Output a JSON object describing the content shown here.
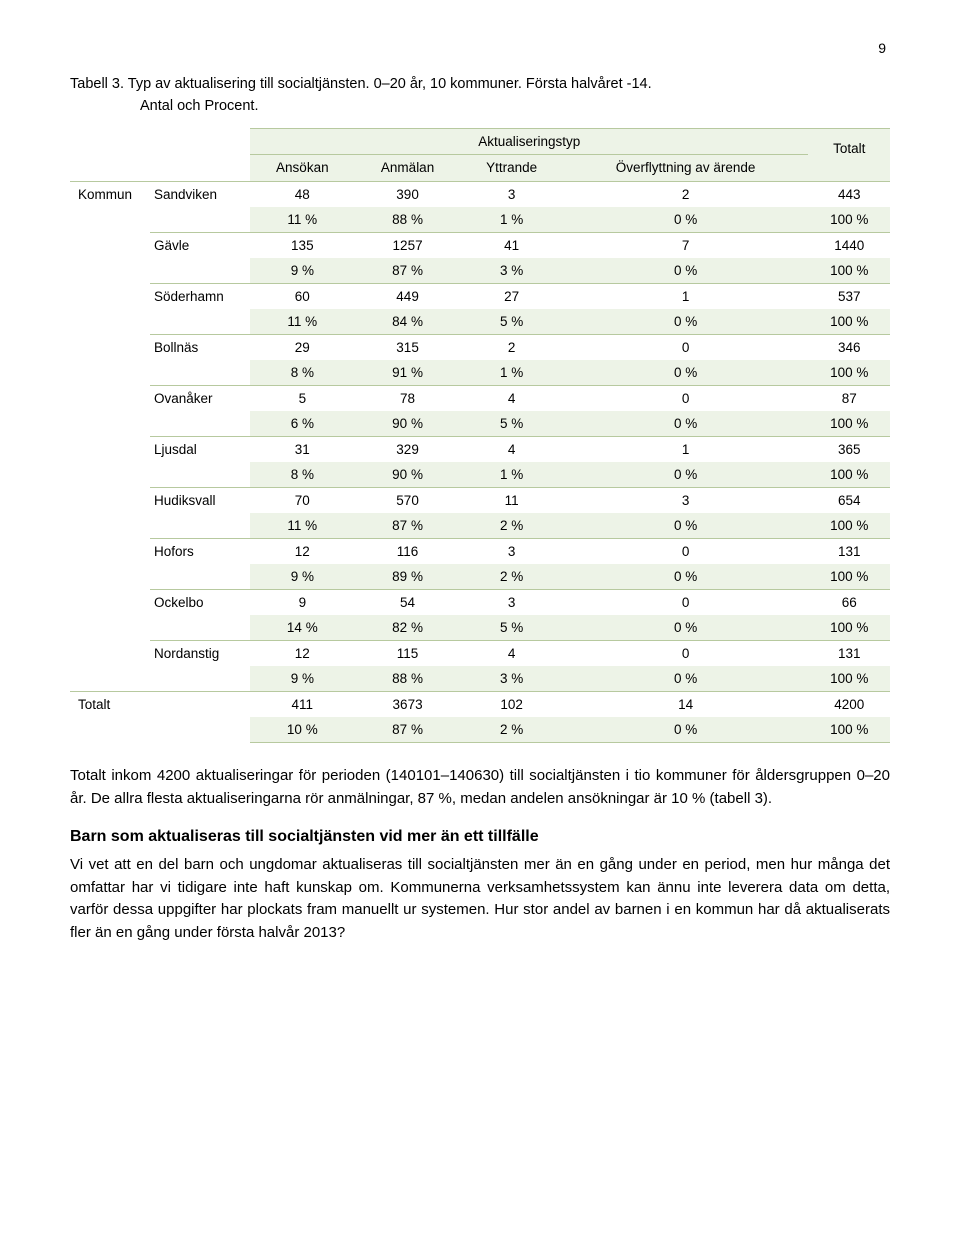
{
  "page_number": "9",
  "table": {
    "title_line1": "Tabell 3. Typ av aktualisering till socialtjänsten. 0–20 år, 10 kommuner. Första halvåret -14.",
    "title_line2_indent": "Antal och Procent.",
    "group_header": "Aktualiseringstyp",
    "total_header": "Totalt",
    "col_headers": [
      "Ansökan",
      "Anmälan",
      "Yttrande",
      "Överflyttning av ärende"
    ],
    "outer_label": "Kommun",
    "total_label": "Totalt",
    "colors": {
      "band_bg": "#edf3e7",
      "border": "#b7c99f"
    },
    "rows": [
      {
        "label": "Sandviken",
        "vals": [
          "48",
          "390",
          "3",
          "2",
          "443"
        ],
        "pct": [
          "11 %",
          "88 %",
          "1 %",
          "0 %",
          "100 %"
        ]
      },
      {
        "label": "Gävle",
        "vals": [
          "135",
          "1257",
          "41",
          "7",
          "1440"
        ],
        "pct": [
          "9 %",
          "87 %",
          "3 %",
          "0 %",
          "100 %"
        ]
      },
      {
        "label": "Söderhamn",
        "vals": [
          "60",
          "449",
          "27",
          "1",
          "537"
        ],
        "pct": [
          "11 %",
          "84 %",
          "5 %",
          "0 %",
          "100 %"
        ]
      },
      {
        "label": "Bollnäs",
        "vals": [
          "29",
          "315",
          "2",
          "0",
          "346"
        ],
        "pct": [
          "8 %",
          "91 %",
          "1 %",
          "0 %",
          "100 %"
        ]
      },
      {
        "label": "Ovanåker",
        "vals": [
          "5",
          "78",
          "4",
          "0",
          "87"
        ],
        "pct": [
          "6 %",
          "90 %",
          "5 %",
          "0 %",
          "100 %"
        ]
      },
      {
        "label": "Ljusdal",
        "vals": [
          "31",
          "329",
          "4",
          "1",
          "365"
        ],
        "pct": [
          "8 %",
          "90 %",
          "1 %",
          "0 %",
          "100 %"
        ]
      },
      {
        "label": "Hudiksvall",
        "vals": [
          "70",
          "570",
          "11",
          "3",
          "654"
        ],
        "pct": [
          "11 %",
          "87 %",
          "2 %",
          "0 %",
          "100 %"
        ]
      },
      {
        "label": "Hofors",
        "vals": [
          "12",
          "116",
          "3",
          "0",
          "131"
        ],
        "pct": [
          "9 %",
          "89 %",
          "2 %",
          "0 %",
          "100 %"
        ]
      },
      {
        "label": "Ockelbo",
        "vals": [
          "9",
          "54",
          "3",
          "0",
          "66"
        ],
        "pct": [
          "14 %",
          "82 %",
          "5 %",
          "0 %",
          "100 %"
        ]
      },
      {
        "label": "Nordanstig",
        "vals": [
          "12",
          "115",
          "4",
          "0",
          "131"
        ],
        "pct": [
          "9 %",
          "88 %",
          "3 %",
          "0 %",
          "100 %"
        ]
      }
    ],
    "total_row": {
      "vals": [
        "411",
        "3673",
        "102",
        "14",
        "4200"
      ],
      "pct": [
        "10 %",
        "87 %",
        "2 %",
        "0 %",
        "100 %"
      ]
    }
  },
  "paragraph1": "Totalt inkom 4200 aktualiseringar för perioden (140101–140630) till socialtjänsten i tio kommuner för åldersgruppen 0–20 år. De allra flesta aktualiseringarna rör anmälningar, 87 %, medan andelen ansökningar är 10 % (tabell 3).",
  "subheading": "Barn som aktualiseras till socialtjänsten vid mer än ett tillfälle",
  "paragraph2": "Vi vet att en del barn och ungdomar aktualiseras till socialtjänsten mer än en gång under en period, men hur många det omfattar har vi tidigare inte haft kunskap om. Kommunerna verksamhetssystem kan ännu inte leverera data om detta, varför dessa uppgifter har plockats fram manuellt ur systemen. Hur stor andel av barnen i en kommun har då aktualiserats fler än en gång under första halvår 2013?"
}
